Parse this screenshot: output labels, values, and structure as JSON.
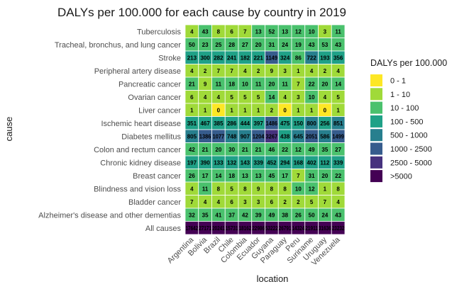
{
  "chart_data": {
    "type": "heatmap",
    "title": "DALYs per 100.000 for each cause by country in 2019",
    "xlabel": "location",
    "ylabel": "cause",
    "x_categories": [
      "Argentina",
      "Bolivia",
      "Brazil",
      "Chile",
      "Colombia",
      "Ecuador",
      "Guyana",
      "Paraguay",
      "Peru",
      "Suriname",
      "Uruguay",
      "Venezuela"
    ],
    "y_categories": [
      "Tuberculosis",
      "Tracheal, bronchus, and lung cancer",
      "Stroke",
      "Peripheral artery disease",
      "Pancreatic cancer",
      "Ovarian cancer",
      "Liver cancer",
      "Ischemic heart disease",
      "Diabetes mellitus",
      "Colon and rectum cancer",
      "Chronic kidney disease",
      "Breast cancer",
      "Blindness and vision loss",
      "Bladder cancer",
      "Alzheimer's disease and other dementias",
      "All causes"
    ],
    "values": [
      [
        4,
        43,
        8,
        6,
        7,
        13,
        52,
        13,
        12,
        10,
        3,
        11
      ],
      [
        50,
        23,
        25,
        28,
        27,
        20,
        31,
        24,
        19,
        43,
        53,
        43
      ],
      [
        213,
        300,
        282,
        241,
        182,
        221,
        1149,
        324,
        86,
        722,
        193,
        356
      ],
      [
        4,
        2,
        7,
        7,
        4,
        2,
        9,
        3,
        1,
        4,
        2,
        4
      ],
      [
        21,
        9,
        11,
        18,
        10,
        11,
        20,
        11,
        7,
        22,
        20,
        14
      ],
      [
        6,
        4,
        4,
        5,
        5,
        5,
        14,
        4,
        3,
        10,
        4,
        5
      ],
      [
        1,
        1,
        0,
        1,
        1,
        1,
        2,
        0,
        1,
        1,
        0,
        1
      ],
      [
        351,
        467,
        385,
        286,
        444,
        397,
        1486,
        475,
        150,
        800,
        256,
        851
      ],
      [
        805,
        1386,
        1077,
        748,
        907,
        1204,
        3267,
        438,
        645,
        2051,
        586,
        1499
      ],
      [
        42,
        21,
        20,
        30,
        21,
        21,
        46,
        22,
        12,
        49,
        35,
        27
      ],
      [
        197,
        390,
        133,
        132,
        143,
        339,
        452,
        294,
        168,
        402,
        112,
        339
      ],
      [
        26,
        17,
        14,
        18,
        13,
        13,
        45,
        17,
        7,
        31,
        20,
        22
      ],
      [
        4,
        11,
        8,
        5,
        8,
        9,
        8,
        8,
        10,
        12,
        1,
        8
      ],
      [
        7,
        4,
        4,
        6,
        3,
        3,
        6,
        2,
        2,
        5,
        7,
        4
      ],
      [
        32,
        35,
        41,
        37,
        42,
        39,
        49,
        38,
        26,
        50,
        24,
        43
      ],
      [
        17642,
        27171,
        20241,
        15731,
        18162,
        22986,
        53222,
        26791,
        14324,
        21911,
        31636,
        23232
      ]
    ],
    "cell_labels": [
      [
        "4",
        "43",
        "8",
        "6",
        "7",
        "13",
        "52",
        "13",
        "12",
        "10",
        "3",
        "11"
      ],
      [
        "50",
        "23",
        "25",
        "28",
        "27",
        "20",
        "31",
        "24",
        "19",
        "43",
        "53",
        "43"
      ],
      [
        "213",
        "300",
        "282",
        "241",
        "182",
        "221",
        "1149",
        "324",
        "86",
        "722",
        "193",
        "356"
      ],
      [
        "4",
        "2",
        "7",
        "7",
        "4",
        "2",
        "9",
        "3",
        "1",
        "4",
        "2",
        "4"
      ],
      [
        "21",
        "9",
        "11",
        "18",
        "10",
        "11",
        "20",
        "11",
        "7",
        "22",
        "20",
        "14"
      ],
      [
        "6",
        "4",
        "4",
        "5",
        "5",
        "5",
        "14",
        "4",
        "3",
        "10",
        "4",
        "5"
      ],
      [
        "1",
        "1",
        "0",
        "1",
        "1",
        "1",
        "2",
        "0",
        "1",
        "1",
        "0",
        "1"
      ],
      [
        "351",
        "467",
        "385",
        "286",
        "444",
        "397",
        "1486",
        "475",
        "150",
        "800",
        "256",
        "851"
      ],
      [
        "805",
        "1386",
        "1077",
        "748",
        "907",
        "1204",
        "3267",
        "438",
        "645",
        "2051",
        "586",
        "1499"
      ],
      [
        "42",
        "21",
        "20",
        "30",
        "21",
        "21",
        "46",
        "22",
        "12",
        "49",
        "35",
        "27"
      ],
      [
        "197",
        "390",
        "133",
        "132",
        "143",
        "339",
        "452",
        "294",
        "168",
        "402",
        "112",
        "339"
      ],
      [
        "26",
        "17",
        "14",
        "18",
        "13",
        "13",
        "45",
        "17",
        "7",
        "31",
        "20",
        "22"
      ],
      [
        "4",
        "11",
        "8",
        "5",
        "8",
        "9",
        "8",
        "8",
        "10",
        "12",
        "1",
        "8"
      ],
      [
        "7",
        "4",
        "4",
        "6",
        "3",
        "3",
        "6",
        "2",
        "2",
        "5",
        "7",
        "4"
      ],
      [
        "32",
        "35",
        "41",
        "37",
        "42",
        "39",
        "49",
        "38",
        "26",
        "50",
        "24",
        "43"
      ],
      [
        "17642",
        "27171",
        "20241",
        "15731",
        "18162",
        "22986",
        "53222",
        "26791",
        "14324",
        "21911",
        "31636",
        "23232"
      ]
    ],
    "legend": {
      "title": "DALYs per 100.000",
      "placement": "right",
      "bins": [
        {
          "label": "0 - 1",
          "min": 0,
          "max": 1,
          "color": "#fde725"
        },
        {
          "label": "1 - 10",
          "min": 1,
          "max": 10,
          "color": "#a0da39"
        },
        {
          "label": "10 - 100",
          "min": 10,
          "max": 100,
          "color": "#4ac16d"
        },
        {
          "label": "100 - 500",
          "min": 100,
          "max": 500,
          "color": "#1fa187"
        },
        {
          "label": "500 - 1000",
          "min": 500,
          "max": 1000,
          "color": "#277f8e"
        },
        {
          "label": "1000 - 2500",
          "min": 1000,
          "max": 2500,
          "color": "#365c8d"
        },
        {
          "label": "2500 - 5000",
          "min": 2500,
          "max": 5000,
          "color": "#46327e"
        },
        {
          "label": ">5000",
          "min": 5000,
          "max": null,
          "color": "#440154"
        }
      ]
    },
    "grid": false
  }
}
